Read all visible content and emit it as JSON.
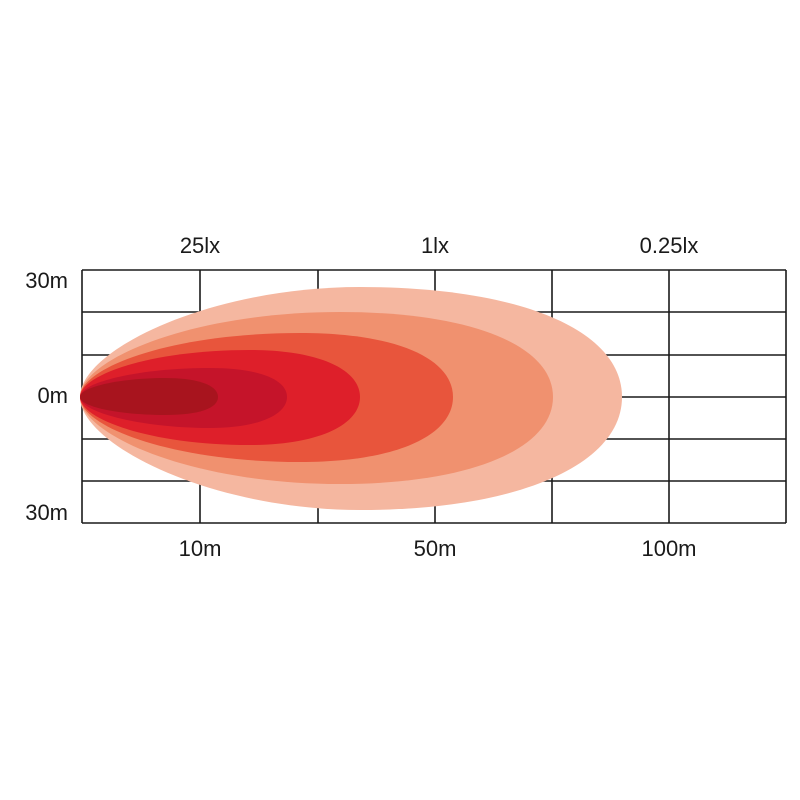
{
  "top_labels": [
    "25lx",
    "1lx",
    "0.25lx"
  ],
  "left_labels": [
    "30m",
    "0m",
    "30m"
  ],
  "bottom_labels": [
    "10m",
    "50m",
    "100m"
  ]
}
